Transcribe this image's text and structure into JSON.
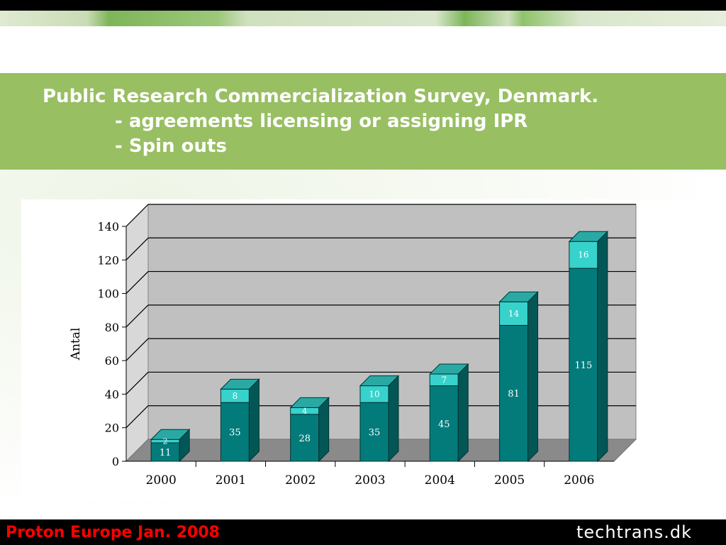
{
  "slide": {
    "title_line1": "Public Research Commercialization Survey, Denmark.",
    "title_line2": "- agreements licensing or assigning IPR",
    "title_line3": "- Spin outs"
  },
  "footer": {
    "left_text": "Proton Europe Jan. 2008",
    "right_text": "techtrans.dk"
  },
  "colors": {
    "title_band": "#98bf62",
    "bar_dark_front": "#047b7b",
    "bar_light_front": "#37d2cc",
    "plot_background": "#c0c0c0",
    "footer_left_text": "#ff0000"
  },
  "chart_data": {
    "type": "bar",
    "stacked": true,
    "three_d": true,
    "categories": [
      "2000",
      "2001",
      "2002",
      "2003",
      "2004",
      "2005",
      "2006"
    ],
    "series": [
      {
        "values": [
          11,
          35,
          28,
          35,
          45,
          81,
          115
        ]
      },
      {
        "values": [
          2,
          8,
          4,
          10,
          7,
          14,
          16
        ]
      }
    ],
    "ylabel": "Antal",
    "ylim": [
      0,
      140
    ],
    "yticks": [
      "0",
      "20",
      "40",
      "60",
      "80",
      "100",
      "120",
      "140"
    ],
    "grid": true,
    "legend": "none"
  }
}
